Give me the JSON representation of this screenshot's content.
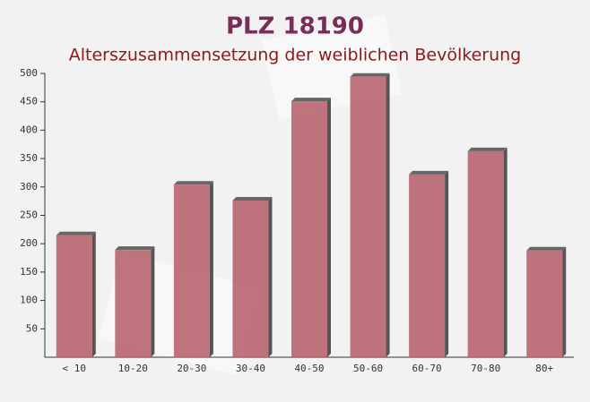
{
  "chart_data": {
    "type": "bar",
    "title": "PLZ 18190",
    "subtitle": "Alterszusammensetzung der weiblichen Bevölkerung",
    "categories": [
      "< 10",
      "10-20",
      "20-30",
      "30-40",
      "40-50",
      "50-60",
      "60-70",
      "70-80",
      "80+"
    ],
    "values": [
      215,
      189,
      304,
      276,
      451,
      494,
      322,
      363,
      188
    ],
    "color": "#b8656f",
    "ylim": [
      0,
      500
    ],
    "yticks": [
      50,
      100,
      150,
      200,
      250,
      300,
      350,
      400,
      450,
      500
    ]
  }
}
